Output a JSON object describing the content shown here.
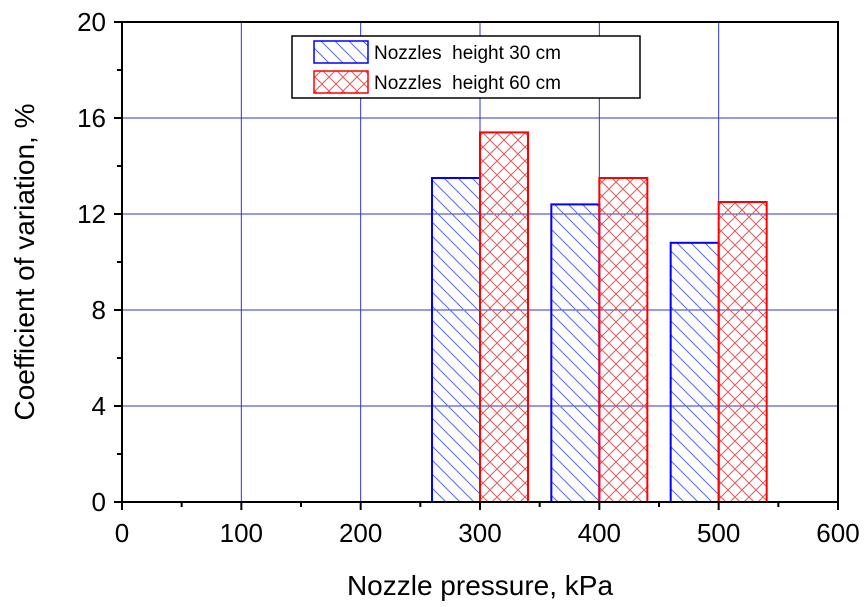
{
  "chart_data": {
    "type": "bar",
    "x": [
      300,
      400,
      500
    ],
    "xlabel": "Nozzle pressure, kPa",
    "ylabel": "Coefficient of variation, %",
    "xlim": [
      0,
      600
    ],
    "ylim": [
      0,
      20
    ],
    "xticks": [
      0,
      100,
      200,
      300,
      400,
      500,
      600
    ],
    "yticks": [
      0,
      4,
      8,
      12,
      16,
      20
    ],
    "grid": true,
    "legend_position": "top-center",
    "series": [
      {
        "name": "Nozzles  height 30 cm",
        "values": [
          13.5,
          12.4,
          10.8
        ],
        "color": "#0000ff",
        "pattern": "diagonal-hatch"
      },
      {
        "name": "Nozzles  height 60 cm",
        "values": [
          15.4,
          13.5,
          12.5
        ],
        "color": "#ff0000",
        "pattern": "cross-hatch"
      }
    ]
  },
  "colors": {
    "grid": "#3333cc",
    "axis": "#000000"
  }
}
